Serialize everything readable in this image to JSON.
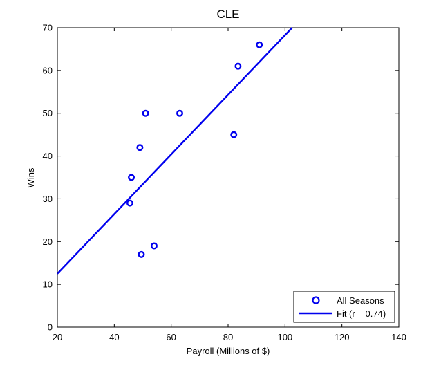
{
  "chart_data": {
    "type": "scatter",
    "title": "CLE",
    "xlabel": "Payroll (Millions of $)",
    "ylabel": "Wins",
    "xlim": [
      20,
      140
    ],
    "ylim": [
      0,
      70
    ],
    "xticks": [
      20,
      40,
      60,
      80,
      100,
      120,
      140
    ],
    "yticks": [
      0,
      10,
      20,
      30,
      40,
      50,
      60,
      70
    ],
    "grid": false,
    "legend_position": "bottom-right",
    "series": [
      {
        "name": "All Seasons",
        "kind": "scatter",
        "marker": "circle",
        "color": "#0000ee",
        "points": [
          {
            "x": 45.5,
            "y": 29
          },
          {
            "x": 46,
            "y": 35
          },
          {
            "x": 49,
            "y": 42
          },
          {
            "x": 49.5,
            "y": 17
          },
          {
            "x": 51,
            "y": 50
          },
          {
            "x": 54,
            "y": 19
          },
          {
            "x": 63,
            "y": 50
          },
          {
            "x": 82,
            "y": 45
          },
          {
            "x": 83.5,
            "y": 61
          },
          {
            "x": 91,
            "y": 66
          }
        ]
      },
      {
        "name": "Fit (r = 0.74)",
        "kind": "line",
        "color": "#0000ee",
        "points": [
          {
            "x": 20,
            "y": 12.5
          },
          {
            "x": 102.5,
            "y": 70
          }
        ]
      }
    ]
  }
}
